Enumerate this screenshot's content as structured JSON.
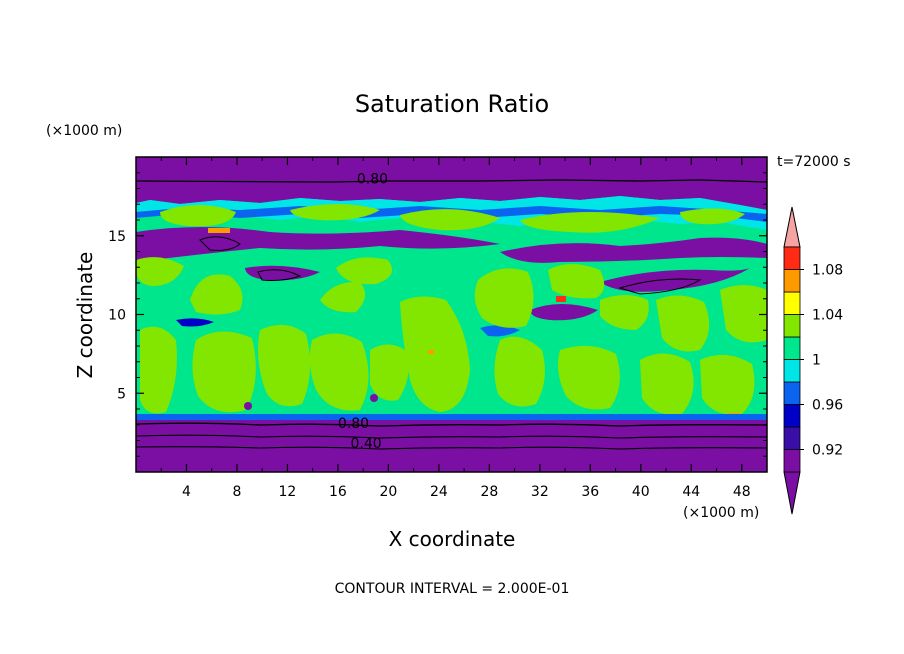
{
  "chart_data": {
    "type": "heatmap",
    "title": "Saturation Ratio",
    "xlabel": "X coordinate",
    "ylabel": "Z coordinate",
    "x_unit": "(×1000 m)",
    "y_unit": "(×1000 m)",
    "time_label": "t=72000 s",
    "footer": "CONTOUR INTERVAL = 2.000E-01",
    "xlim": [
      0,
      50
    ],
    "ylim": [
      0,
      20
    ],
    "x_ticks": [
      4,
      8,
      12,
      16,
      20,
      24,
      28,
      32,
      36,
      40,
      44,
      48
    ],
    "y_ticks": [
      5,
      10,
      15
    ],
    "x_tick_labels": [
      "4",
      "8",
      "12",
      "16",
      "20",
      "24",
      "28",
      "32",
      "36",
      "40",
      "44",
      "48"
    ],
    "y_tick_labels": [
      "5",
      "10",
      "15"
    ],
    "contour_labels": [
      {
        "text": "0.80",
        "x": 17.5,
        "y": 18.5
      },
      {
        "text": "0.80",
        "x": 16.0,
        "y": 3.0
      },
      {
        "text": "0.40",
        "x": 17.0,
        "y": 1.7
      }
    ],
    "colorbar": {
      "levels": [
        0.9,
        0.92,
        0.94,
        0.96,
        0.98,
        1.0,
        1.02,
        1.04,
        1.06,
        1.08,
        1.1
      ],
      "tick_labels": [
        "0.92",
        "0.96",
        "1",
        "1.04",
        "1.08"
      ],
      "colors": [
        "#7b0fa3",
        "#3a0fa8",
        "#0000c8",
        "#0a64f0",
        "#00e6e6",
        "#00e68c",
        "#82e600",
        "#ffff00",
        "#ff9900",
        "#ff2b14"
      ],
      "under_color": "#7b0fa3",
      "over_color": "#f5a3a3"
    },
    "regions": [
      {
        "level": "<0.90",
        "color": "#7b0fa3",
        "z_range": [
          0,
          3
        ]
      },
      {
        "level": "~0.98-1.02",
        "color": "#00e68c",
        "z_range": [
          3,
          13.5
        ]
      },
      {
        "level": "1.02-1.04",
        "color": "#82e600",
        "z_range": [
          3,
          17
        ]
      },
      {
        "level": "<0.90",
        "color": "#7b0fa3",
        "z_range": [
          13.5,
          20
        ]
      }
    ]
  }
}
